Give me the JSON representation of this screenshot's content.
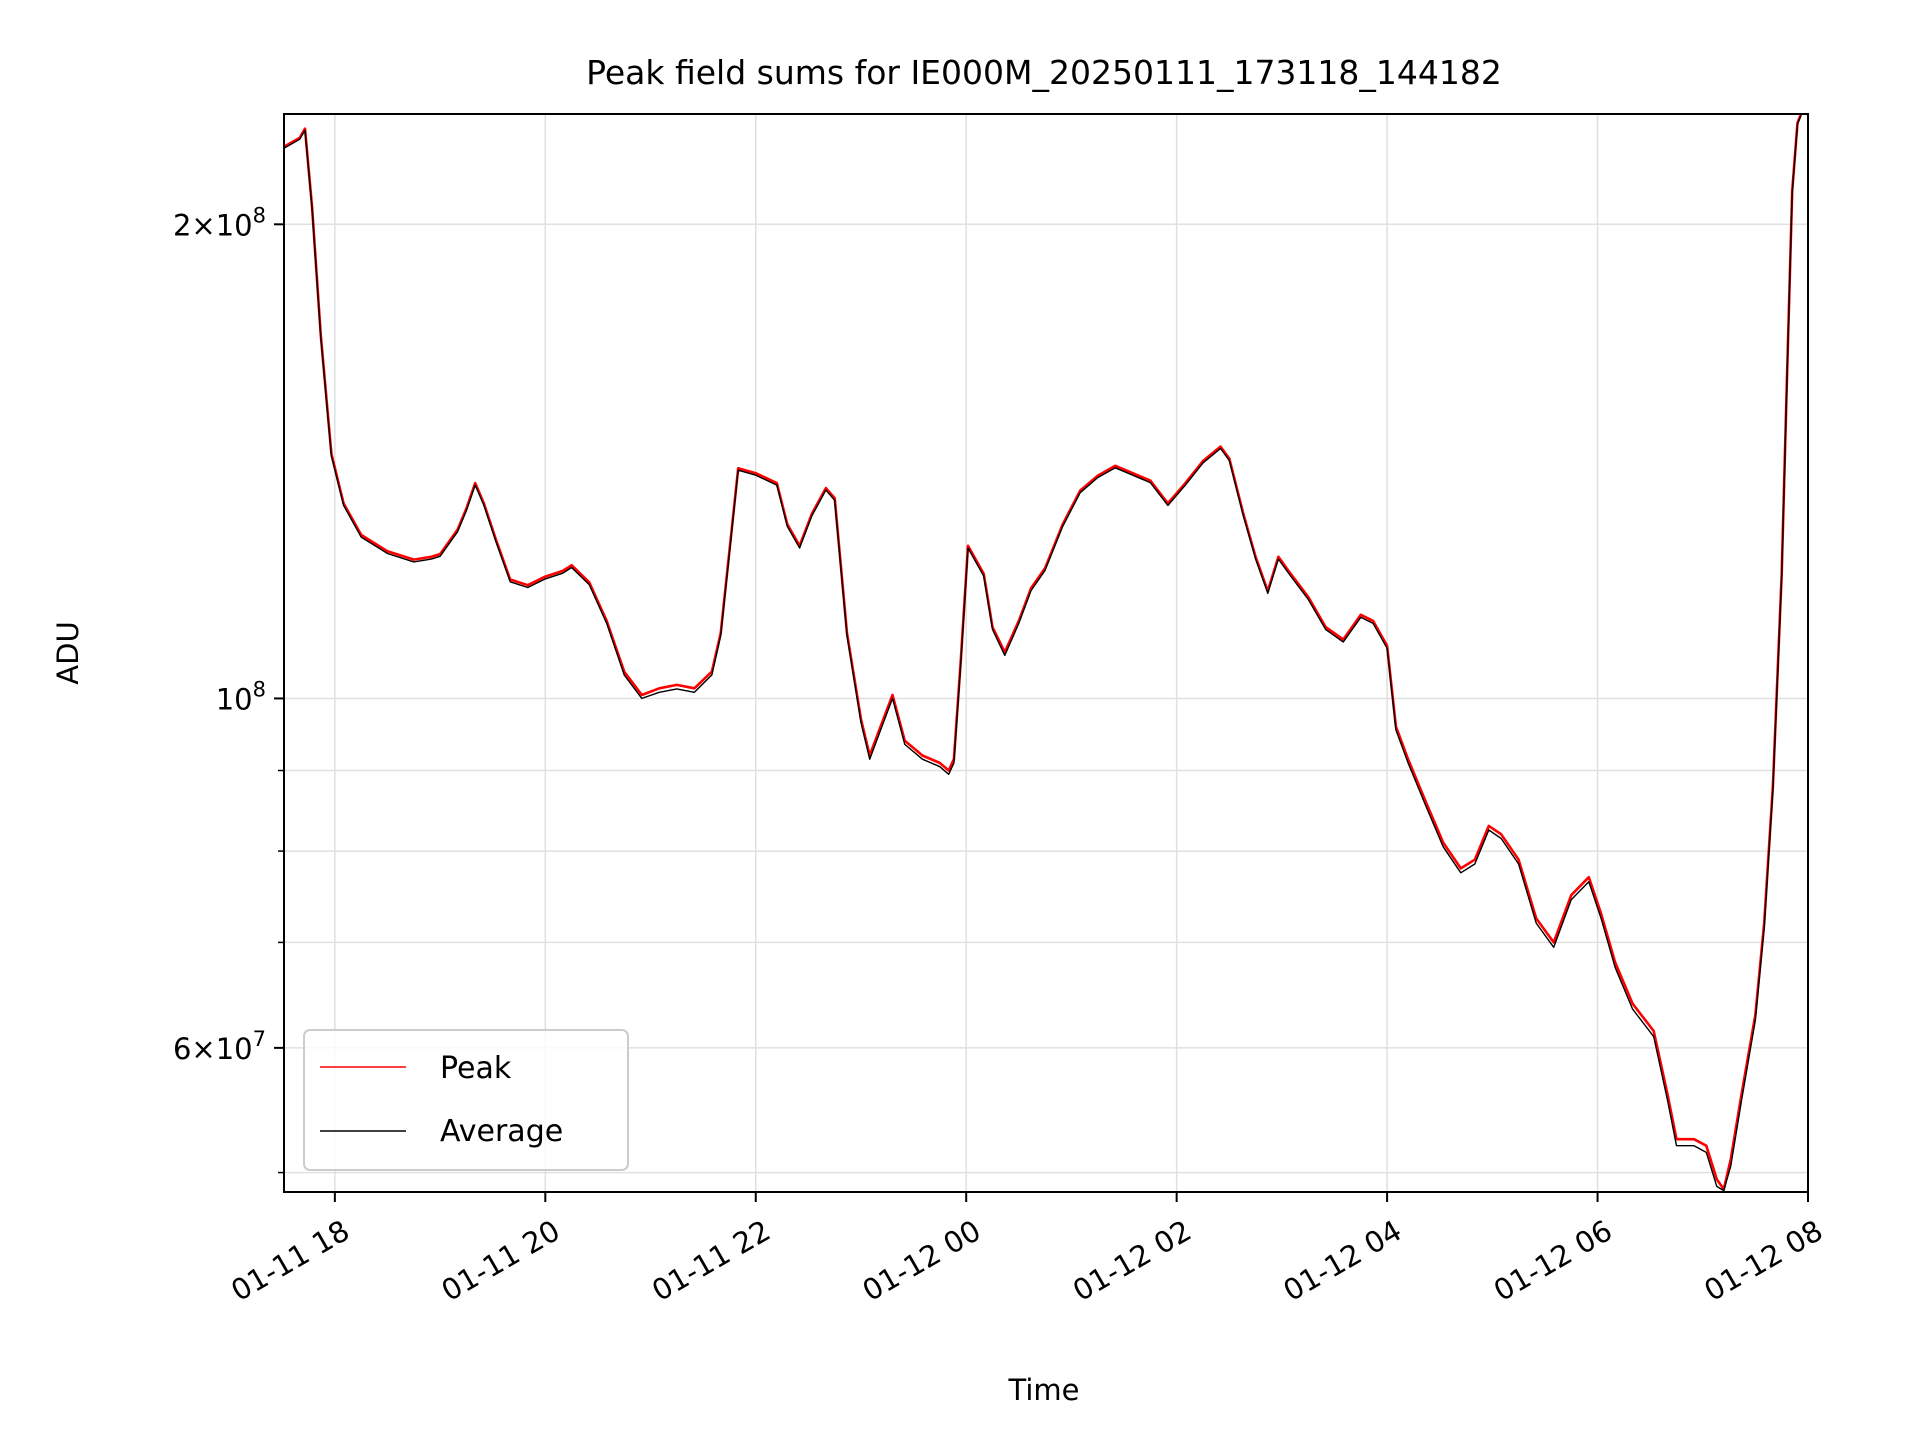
{
  "chart_data": {
    "type": "line",
    "title": "Peak field sums for IE000M_20250111_173118_144182",
    "xlabel": "Time",
    "ylabel": "ADU",
    "x_unit": "datetime",
    "xlim": [
      "2025-01-11 17:31",
      "2025-01-12 08:00"
    ],
    "ylim": [
      48600000,
      235000000
    ],
    "y_scale": "log",
    "x_ticks": [
      {
        "value": "2025-01-11 18:00",
        "label": "01-11 18"
      },
      {
        "value": "2025-01-11 20:00",
        "label": "01-11 20"
      },
      {
        "value": "2025-01-11 22:00",
        "label": "01-11 22"
      },
      {
        "value": "2025-01-12 00:00",
        "label": "01-12 00"
      },
      {
        "value": "2025-01-12 02:00",
        "label": "01-12 02"
      },
      {
        "value": "2025-01-12 04:00",
        "label": "01-12 04"
      },
      {
        "value": "2025-01-12 06:00",
        "label": "01-12 06"
      },
      {
        "value": "2025-01-12 08:00",
        "label": "01-12 08"
      }
    ],
    "y_ticks_major": [
      {
        "value": 200000000,
        "mantissa": "2",
        "exp": "8"
      },
      {
        "value": 100000000,
        "mantissa": "",
        "exp": "8"
      },
      {
        "value": 60000000,
        "mantissa": "6",
        "exp": "7"
      }
    ],
    "y_ticks_minor": [
      50000000,
      70000000,
      80000000,
      90000000
    ],
    "grid": true,
    "legend_position": "lower-left",
    "series": [
      {
        "name": "Peak",
        "color": "#ff0000",
        "points": [
          [
            "2025-01-11 17:31",
            224000000
          ],
          [
            "2025-01-11 17:40",
            227000000
          ],
          [
            "2025-01-11 17:43",
            230000000
          ],
          [
            "2025-01-11 17:47",
            205000000
          ],
          [
            "2025-01-11 17:52",
            170000000
          ],
          [
            "2025-01-11 17:58",
            143000000
          ],
          [
            "2025-01-11 18:05",
            133000000
          ],
          [
            "2025-01-11 18:15",
            127000000
          ],
          [
            "2025-01-11 18:30",
            124000000
          ],
          [
            "2025-01-11 18:45",
            122500000
          ],
          [
            "2025-01-11 18:55",
            123000000
          ],
          [
            "2025-01-11 19:00",
            123500000
          ],
          [
            "2025-01-11 19:10",
            128000000
          ],
          [
            "2025-01-11 19:15",
            132000000
          ],
          [
            "2025-01-11 19:20",
            137000000
          ],
          [
            "2025-01-11 19:25",
            133000000
          ],
          [
            "2025-01-11 19:32",
            126000000
          ],
          [
            "2025-01-11 19:40",
            119000000
          ],
          [
            "2025-01-11 19:50",
            118000000
          ],
          [
            "2025-01-11 20:00",
            119500000
          ],
          [
            "2025-01-11 20:10",
            120500000
          ],
          [
            "2025-01-11 20:15",
            121500000
          ],
          [
            "2025-01-11 20:25",
            118500000
          ],
          [
            "2025-01-11 20:35",
            112000000
          ],
          [
            "2025-01-11 20:45",
            104000000
          ],
          [
            "2025-01-11 20:55",
            100500000
          ],
          [
            "2025-01-11 21:05",
            101500000
          ],
          [
            "2025-01-11 21:15",
            102000000
          ],
          [
            "2025-01-11 21:25",
            101500000
          ],
          [
            "2025-01-11 21:35",
            104000000
          ],
          [
            "2025-01-11 21:40",
            110000000
          ],
          [
            "2025-01-11 21:45",
            124000000
          ],
          [
            "2025-01-11 21:50",
            140000000
          ],
          [
            "2025-01-11 22:00",
            139000000
          ],
          [
            "2025-01-11 22:12",
            137000000
          ],
          [
            "2025-01-11 22:18",
            129000000
          ],
          [
            "2025-01-11 22:25",
            125000000
          ],
          [
            "2025-01-11 22:32",
            131000000
          ],
          [
            "2025-01-11 22:40",
            136000000
          ],
          [
            "2025-01-11 22:45",
            134000000
          ],
          [
            "2025-01-11 22:52",
            110000000
          ],
          [
            "2025-01-11 23:00",
            97000000
          ],
          [
            "2025-01-11 23:05",
            92000000
          ],
          [
            "2025-01-11 23:12",
            96500000
          ],
          [
            "2025-01-11 23:18",
            100500000
          ],
          [
            "2025-01-11 23:25",
            94000000
          ],
          [
            "2025-01-11 23:35",
            92000000
          ],
          [
            "2025-01-11 23:45",
            91000000
          ],
          [
            "2025-01-11 23:50",
            90000000
          ],
          [
            "2025-01-11 23:53",
            91500000
          ],
          [
            "2025-01-11 23:57",
            106000000
          ],
          [
            "2025-01-12 00:01",
            125000000
          ],
          [
            "2025-01-12 00:10",
            120000000
          ],
          [
            "2025-01-12 00:15",
            111000000
          ],
          [
            "2025-01-12 00:22",
            107000000
          ],
          [
            "2025-01-12 00:30",
            112000000
          ],
          [
            "2025-01-12 00:37",
            117500000
          ],
          [
            "2025-01-12 00:45",
            121000000
          ],
          [
            "2025-01-12 00:55",
            129000000
          ],
          [
            "2025-01-12 01:05",
            135500000
          ],
          [
            "2025-01-12 01:15",
            138500000
          ],
          [
            "2025-01-12 01:25",
            140500000
          ],
          [
            "2025-01-12 01:35",
            139000000
          ],
          [
            "2025-01-12 01:45",
            137500000
          ],
          [
            "2025-01-12 01:55",
            133000000
          ],
          [
            "2025-01-12 02:05",
            137000000
          ],
          [
            "2025-01-12 02:15",
            141500000
          ],
          [
            "2025-01-12 02:25",
            144500000
          ],
          [
            "2025-01-12 02:30",
            142000000
          ],
          [
            "2025-01-12 02:38",
            131000000
          ],
          [
            "2025-01-12 02:45",
            123000000
          ],
          [
            "2025-01-12 02:52",
            117000000
          ],
          [
            "2025-01-12 02:58",
            123000000
          ],
          [
            "2025-01-12 03:05",
            120000000
          ],
          [
            "2025-01-12 03:15",
            116000000
          ],
          [
            "2025-01-12 03:25",
            111000000
          ],
          [
            "2025-01-12 03:35",
            109000000
          ],
          [
            "2025-01-12 03:45",
            113000000
          ],
          [
            "2025-01-12 03:52",
            112000000
          ],
          [
            "2025-01-12 04:00",
            108000000
          ],
          [
            "2025-01-12 04:05",
            96000000
          ],
          [
            "2025-01-12 04:12",
            91500000
          ],
          [
            "2025-01-12 04:22",
            86000000
          ],
          [
            "2025-01-12 04:32",
            81000000
          ],
          [
            "2025-01-12 04:42",
            78000000
          ],
          [
            "2025-01-12 04:50",
            79000000
          ],
          [
            "2025-01-12 04:58",
            83000000
          ],
          [
            "2025-01-12 05:05",
            82000000
          ],
          [
            "2025-01-12 05:15",
            79000000
          ],
          [
            "2025-01-12 05:25",
            72500000
          ],
          [
            "2025-01-12 05:35",
            70000000
          ],
          [
            "2025-01-12 05:45",
            75000000
          ],
          [
            "2025-01-12 05:55",
            77000000
          ],
          [
            "2025-01-12 06:02",
            73000000
          ],
          [
            "2025-01-12 06:10",
            68000000
          ],
          [
            "2025-01-12 06:20",
            64000000
          ],
          [
            "2025-01-12 06:32",
            61500000
          ],
          [
            "2025-01-12 06:40",
            56000000
          ],
          [
            "2025-01-12 06:45",
            52500000
          ],
          [
            "2025-01-12 06:55",
            52500000
          ],
          [
            "2025-01-12 07:02",
            52000000
          ],
          [
            "2025-01-12 07:08",
            49500000
          ],
          [
            "2025-01-12 07:12",
            48800000
          ],
          [
            "2025-01-12 07:16",
            51000000
          ],
          [
            "2025-01-12 07:22",
            56000000
          ],
          [
            "2025-01-12 07:30",
            63000000
          ],
          [
            "2025-01-12 07:35",
            72000000
          ],
          [
            "2025-01-12 07:40",
            88000000
          ],
          [
            "2025-01-12 07:45",
            120000000
          ],
          [
            "2025-01-12 07:48",
            160000000
          ],
          [
            "2025-01-12 07:51",
            210000000
          ],
          [
            "2025-01-12 07:54",
            232000000
          ],
          [
            "2025-01-12 07:56",
            235000000
          ]
        ]
      },
      {
        "name": "Average",
        "color": "#000000",
        "points": [
          [
            "2025-01-11 17:31",
            223500000
          ],
          [
            "2025-01-11 17:40",
            226500000
          ],
          [
            "2025-01-11 17:43",
            229500000
          ],
          [
            "2025-01-11 17:47",
            204500000
          ],
          [
            "2025-01-11 17:52",
            169500000
          ],
          [
            "2025-01-11 17:58",
            142500000
          ],
          [
            "2025-01-11 18:05",
            132600000
          ],
          [
            "2025-01-11 18:15",
            126600000
          ],
          [
            "2025-01-11 18:30",
            123600000
          ],
          [
            "2025-01-11 18:45",
            122100000
          ],
          [
            "2025-01-11 18:55",
            122600000
          ],
          [
            "2025-01-11 19:00",
            123100000
          ],
          [
            "2025-01-11 19:10",
            127600000
          ],
          [
            "2025-01-11 19:15",
            131600000
          ],
          [
            "2025-01-11 19:20",
            136600000
          ],
          [
            "2025-01-11 19:25",
            132600000
          ],
          [
            "2025-01-11 19:32",
            125600000
          ],
          [
            "2025-01-11 19:40",
            118600000
          ],
          [
            "2025-01-11 19:50",
            117600000
          ],
          [
            "2025-01-11 20:00",
            119100000
          ],
          [
            "2025-01-11 20:10",
            120100000
          ],
          [
            "2025-01-11 20:15",
            121100000
          ],
          [
            "2025-01-11 20:25",
            118100000
          ],
          [
            "2025-01-11 20:35",
            111600000
          ],
          [
            "2025-01-11 20:45",
            103500000
          ],
          [
            "2025-01-11 20:55",
            100000000
          ],
          [
            "2025-01-11 21:05",
            100900000
          ],
          [
            "2025-01-11 21:15",
            101400000
          ],
          [
            "2025-01-11 21:25",
            100900000
          ],
          [
            "2025-01-11 21:35",
            103500000
          ],
          [
            "2025-01-11 21:40",
            109600000
          ],
          [
            "2025-01-11 21:45",
            123600000
          ],
          [
            "2025-01-11 21:50",
            139600000
          ],
          [
            "2025-01-11 22:00",
            138600000
          ],
          [
            "2025-01-11 22:12",
            136600000
          ],
          [
            "2025-01-11 22:18",
            128600000
          ],
          [
            "2025-01-11 22:25",
            124600000
          ],
          [
            "2025-01-11 22:32",
            130600000
          ],
          [
            "2025-01-11 22:40",
            135600000
          ],
          [
            "2025-01-11 22:45",
            133600000
          ],
          [
            "2025-01-11 22:52",
            109600000
          ],
          [
            "2025-01-11 23:00",
            96500000
          ],
          [
            "2025-01-11 23:05",
            91500000
          ],
          [
            "2025-01-11 23:12",
            96000000
          ],
          [
            "2025-01-11 23:18",
            100000000
          ],
          [
            "2025-01-11 23:25",
            93500000
          ],
          [
            "2025-01-11 23:35",
            91500000
          ],
          [
            "2025-01-11 23:45",
            90500000
          ],
          [
            "2025-01-11 23:50",
            89500000
          ],
          [
            "2025-01-11 23:53",
            91000000
          ],
          [
            "2025-01-11 23:57",
            105500000
          ],
          [
            "2025-01-12 00:01",
            124600000
          ],
          [
            "2025-01-12 00:10",
            119600000
          ],
          [
            "2025-01-12 00:15",
            110600000
          ],
          [
            "2025-01-12 00:22",
            106500000
          ],
          [
            "2025-01-12 00:30",
            111600000
          ],
          [
            "2025-01-12 00:37",
            117100000
          ],
          [
            "2025-01-12 00:45",
            120600000
          ],
          [
            "2025-01-12 00:55",
            128600000
          ],
          [
            "2025-01-12 01:05",
            135100000
          ],
          [
            "2025-01-12 01:15",
            138100000
          ],
          [
            "2025-01-12 01:25",
            140100000
          ],
          [
            "2025-01-12 01:35",
            138600000
          ],
          [
            "2025-01-12 01:45",
            137100000
          ],
          [
            "2025-01-12 01:55",
            132600000
          ],
          [
            "2025-01-12 02:05",
            136600000
          ],
          [
            "2025-01-12 02:15",
            141100000
          ],
          [
            "2025-01-12 02:25",
            144100000
          ],
          [
            "2025-01-12 02:30",
            141600000
          ],
          [
            "2025-01-12 02:38",
            130600000
          ],
          [
            "2025-01-12 02:45",
            122600000
          ],
          [
            "2025-01-12 02:52",
            116600000
          ],
          [
            "2025-01-12 02:58",
            122600000
          ],
          [
            "2025-01-12 03:05",
            119600000
          ],
          [
            "2025-01-12 03:15",
            115600000
          ],
          [
            "2025-01-12 03:25",
            110600000
          ],
          [
            "2025-01-12 03:35",
            108600000
          ],
          [
            "2025-01-12 03:45",
            112600000
          ],
          [
            "2025-01-12 03:52",
            111600000
          ],
          [
            "2025-01-12 04:00",
            107600000
          ],
          [
            "2025-01-12 04:05",
            95500000
          ],
          [
            "2025-01-12 04:12",
            91000000
          ],
          [
            "2025-01-12 04:22",
            85500000
          ],
          [
            "2025-01-12 04:32",
            80500000
          ],
          [
            "2025-01-12 04:42",
            77500000
          ],
          [
            "2025-01-12 04:50",
            78500000
          ],
          [
            "2025-01-12 04:58",
            82500000
          ],
          [
            "2025-01-12 05:05",
            81500000
          ],
          [
            "2025-01-12 05:15",
            78500000
          ],
          [
            "2025-01-12 05:25",
            72000000
          ],
          [
            "2025-01-12 05:35",
            69500000
          ],
          [
            "2025-01-12 05:45",
            74500000
          ],
          [
            "2025-01-12 05:55",
            76500000
          ],
          [
            "2025-01-12 06:02",
            72500000
          ],
          [
            "2025-01-12 06:10",
            67500000
          ],
          [
            "2025-01-12 06:20",
            63500000
          ],
          [
            "2025-01-12 06:32",
            61000000
          ],
          [
            "2025-01-12 06:40",
            55500000
          ],
          [
            "2025-01-12 06:45",
            52000000
          ],
          [
            "2025-01-12 06:55",
            52000000
          ],
          [
            "2025-01-12 07:02",
            51500000
          ],
          [
            "2025-01-12 07:08",
            49000000
          ],
          [
            "2025-01-12 07:12",
            48700000
          ],
          [
            "2025-01-12 07:16",
            50500000
          ],
          [
            "2025-01-12 07:22",
            55500000
          ],
          [
            "2025-01-12 07:30",
            62500000
          ],
          [
            "2025-01-12 07:35",
            71500000
          ],
          [
            "2025-01-12 07:40",
            87500000
          ],
          [
            "2025-01-12 07:45",
            119500000
          ],
          [
            "2025-01-12 07:48",
            159500000
          ],
          [
            "2025-01-12 07:51",
            209500000
          ],
          [
            "2025-01-12 07:54",
            231500000
          ],
          [
            "2025-01-12 07:56",
            234500000
          ]
        ]
      }
    ]
  }
}
